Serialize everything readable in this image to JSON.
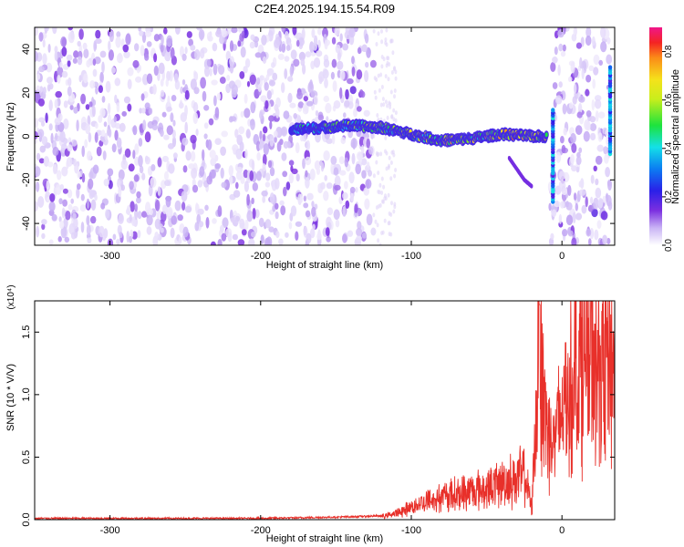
{
  "title": "C2E4.2025.194.15.54.R09",
  "chart_data": [
    {
      "type": "heatmap",
      "xlabel": "Height of straight line (km)",
      "ylabel": "Frequency (Hz)",
      "xlim": [
        -350,
        35
      ],
      "ylim": [
        -50,
        50
      ],
      "xticks": [
        -300,
        -200,
        -100,
        0
      ],
      "yticks": [
        -40,
        -20,
        0,
        20,
        40
      ],
      "colorbar": {
        "label": "Normalized spectral amplitude",
        "range": [
          0.0,
          0.9
        ],
        "ticks": [
          0.0,
          0.2,
          0.4,
          0.6,
          0.8
        ]
      },
      "noise_regions_km": [
        [
          -350,
          -125
        ],
        [
          -8,
          32
        ]
      ],
      "signal_trace": {
        "x": [
          -180,
          -160,
          -140,
          -120,
          -100,
          -80,
          -60,
          -40,
          -20,
          -10
        ],
        "freq_hz": [
          3,
          4,
          5,
          4,
          1,
          -2,
          -1,
          1,
          0,
          0
        ],
        "amplitude": [
          0.45,
          0.5,
          0.55,
          0.6,
          0.62,
          0.7,
          0.65,
          0.72,
          0.8,
          0.75
        ]
      },
      "secondary_trace": {
        "x": [
          -35,
          -30,
          -25,
          -20
        ],
        "freq_hz": [
          -10,
          -15,
          -20,
          -23
        ]
      }
    },
    {
      "type": "line",
      "ylabel": "SNR (10 * V/V)",
      "xlabel": "Height of straight line (km)",
      "y_scale_label": "(x10⁴)",
      "xlim": [
        -350,
        35
      ],
      "ylim": [
        0,
        1.75
      ],
      "xticks": [
        -300,
        -200,
        -100,
        0
      ],
      "yticks": [
        0.0,
        0.5,
        1.0,
        1.5
      ],
      "series": [
        {
          "color": "#e8302a",
          "x": [
            -350,
            -300,
            -250,
            -200,
            -150,
            -120,
            -110,
            -100,
            -90,
            -80,
            -70,
            -60,
            -50,
            -40,
            -30,
            -25,
            -20,
            -15,
            -10,
            -5,
            0,
            5,
            10,
            15,
            20,
            25,
            30,
            35
          ],
          "y": [
            0.01,
            0.01,
            0.01,
            0.01,
            0.02,
            0.03,
            0.06,
            0.12,
            0.18,
            0.22,
            0.25,
            0.28,
            0.3,
            0.35,
            0.4,
            0.45,
            0.1,
            1.72,
            0.9,
            0.75,
            1.05,
            1.25,
            1.55,
            1.6,
            1.45,
            1.5,
            1.55,
            1.52
          ]
        }
      ]
    }
  ]
}
